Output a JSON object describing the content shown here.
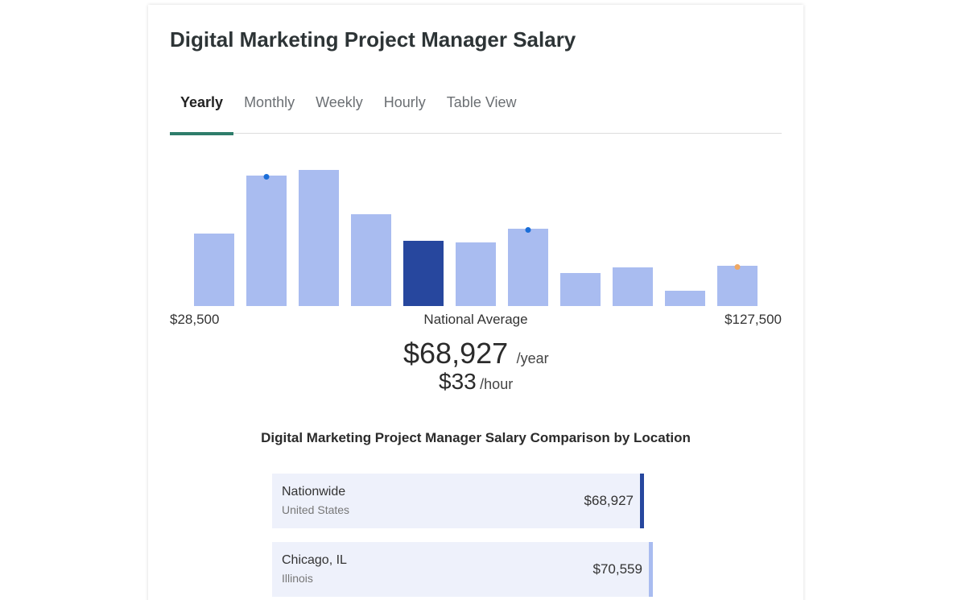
{
  "header": {
    "title": "Digital Marketing Project Manager Salary"
  },
  "tabs": [
    "Yearly",
    "Monthly",
    "Weekly",
    "Hourly",
    "Table View"
  ],
  "active_tab": 0,
  "histogram": {
    "type": "bar",
    "values": [
      90,
      162,
      169,
      114,
      81,
      79,
      96,
      41,
      48,
      19,
      50
    ],
    "colors": [
      "#a9bcf0",
      "#a9bcf0",
      "#a9bcf0",
      "#a9bcf0",
      "#27479e",
      "#a9bcf0",
      "#a9bcf0",
      "#a9bcf0",
      "#a9bcf0",
      "#a9bcf0",
      "#a9bcf0"
    ],
    "dots": [
      null,
      "#1a6ed8",
      null,
      null,
      null,
      null,
      "#1a6ed8",
      null,
      null,
      null,
      "#f0a862"
    ],
    "min_label": "$28,500",
    "center_label": "National Average",
    "max_label": "$127,500"
  },
  "summary": {
    "yearly": "$68,927",
    "yearly_unit": "/year",
    "hourly": "$33",
    "hourly_unit": "/hour"
  },
  "comparison": {
    "title": "Digital Marketing Project Manager Salary Comparison by Location",
    "rows": [
      {
        "name": "Nationwide",
        "region": "United States",
        "value": 68927,
        "value_label": "$68,927",
        "accent": "#27479e"
      },
      {
        "name": "Chicago, IL",
        "region": "Illinois",
        "value": 70559,
        "value_label": "$70,559",
        "accent": "#a9bcf0"
      }
    ]
  }
}
